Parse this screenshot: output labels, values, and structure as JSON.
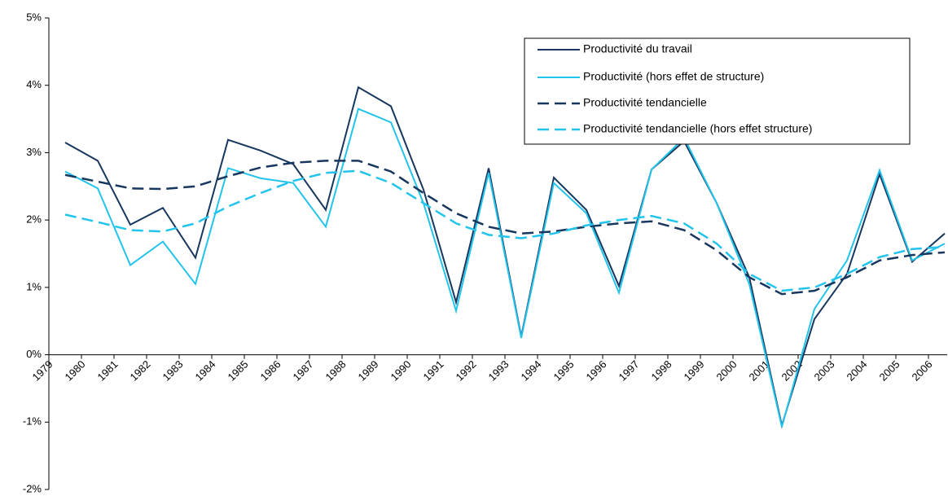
{
  "chart_data": {
    "type": "line",
    "categories": [
      "1979",
      "1980",
      "1981",
      "1982",
      "1983",
      "1984",
      "1985",
      "1986",
      "1987",
      "1988",
      "1989",
      "1990",
      "1991",
      "1992",
      "1993",
      "1994",
      "1995",
      "1996",
      "1997",
      "1998",
      "1999",
      "2000",
      "2001",
      "2002",
      "2003",
      "2004",
      "2005",
      "2006"
    ],
    "series": [
      {
        "name": "Productivité du travail",
        "color": "#17375e",
        "style": "solid",
        "values": [
          3.15,
          2.88,
          1.93,
          2.18,
          1.44,
          3.19,
          3.03,
          2.83,
          2.15,
          3.97,
          3.69,
          2.45,
          0.78,
          2.77,
          0.27,
          2.63,
          2.15,
          1.02,
          2.75,
          3.17,
          2.25,
          1.15,
          -1.05,
          0.53,
          1.2,
          2.68,
          1.38,
          1.8
        ]
      },
      {
        "name": "Productivité (hors effet de structure)",
        "color": "#22c4ec",
        "style": "solid",
        "values": [
          2.72,
          2.47,
          1.33,
          1.68,
          1.05,
          2.77,
          2.62,
          2.55,
          1.9,
          3.65,
          3.45,
          2.25,
          0.65,
          2.7,
          0.25,
          2.55,
          2.1,
          0.92,
          2.75,
          3.22,
          2.25,
          1.05,
          -1.07,
          0.68,
          1.4,
          2.74,
          1.4,
          1.65
        ]
      },
      {
        "name": "Productivité tendancielle",
        "color": "#17375e",
        "style": "dashed",
        "values": [
          2.67,
          2.57,
          2.47,
          2.46,
          2.5,
          2.65,
          2.78,
          2.85,
          2.88,
          2.88,
          2.72,
          2.4,
          2.1,
          1.9,
          1.8,
          1.83,
          1.9,
          1.95,
          1.98,
          1.85,
          1.55,
          1.15,
          0.9,
          0.95,
          1.15,
          1.4,
          1.48,
          1.52
        ]
      },
      {
        "name": "Productivité tendancielle (hors effet structure)",
        "color": "#22c4ec",
        "style": "dashed",
        "values": [
          2.08,
          1.97,
          1.85,
          1.83,
          1.95,
          2.2,
          2.4,
          2.58,
          2.7,
          2.73,
          2.55,
          2.25,
          1.95,
          1.78,
          1.73,
          1.8,
          1.92,
          2.0,
          2.06,
          1.95,
          1.65,
          1.2,
          0.95,
          1.0,
          1.2,
          1.45,
          1.57,
          1.6
        ]
      }
    ],
    "ylim": [
      -2,
      5
    ],
    "yticks": [
      {
        "value": -2,
        "label": "-2%"
      },
      {
        "value": -1,
        "label": "-1%"
      },
      {
        "value": 0,
        "label": "0%"
      },
      {
        "value": 1,
        "label": "1%"
      },
      {
        "value": 2,
        "label": "2%"
      },
      {
        "value": 3,
        "label": "3%"
      },
      {
        "value": 4,
        "label": "4%"
      },
      {
        "value": 5,
        "label": "5%"
      }
    ],
    "grid": false,
    "legend": "top-right"
  }
}
